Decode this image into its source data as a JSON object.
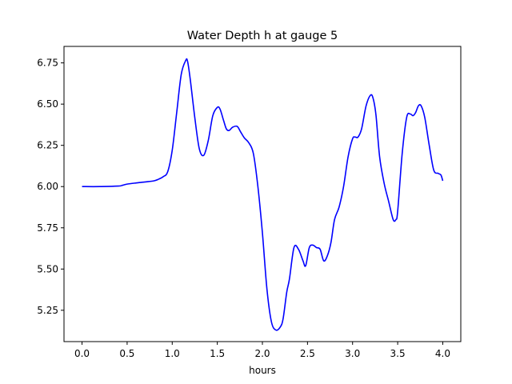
{
  "chart_data": {
    "type": "line",
    "title": "Water Depth h at gauge 5",
    "xlabel": "hours",
    "ylabel": "",
    "xlim": [
      -0.2,
      4.2
    ],
    "ylim": [
      5.06,
      6.85
    ],
    "xticks": [
      0.0,
      0.5,
      1.0,
      1.5,
      2.0,
      2.5,
      3.0,
      3.5,
      4.0
    ],
    "xtick_labels": [
      "0.0",
      "0.5",
      "1.0",
      "1.5",
      "2.0",
      "2.5",
      "3.0",
      "3.5",
      "4.0"
    ],
    "yticks": [
      5.25,
      5.5,
      5.75,
      6.0,
      6.25,
      6.5,
      6.75
    ],
    "ytick_labels": [
      "5.25",
      "5.50",
      "5.75",
      "6.00",
      "6.25",
      "6.50",
      "6.75"
    ],
    "grid": false,
    "series": [
      {
        "color": "#0000ff",
        "x": [
          0.0,
          0.2,
          0.4,
          0.45,
          0.5,
          0.6,
          0.7,
          0.8,
          0.85,
          0.9,
          0.95,
          1.0,
          1.05,
          1.1,
          1.15,
          1.17,
          1.2,
          1.25,
          1.3,
          1.35,
          1.4,
          1.45,
          1.5,
          1.53,
          1.57,
          1.6,
          1.63,
          1.67,
          1.72,
          1.76,
          1.8,
          1.85,
          1.9,
          1.95,
          2.0,
          2.05,
          2.1,
          2.15,
          2.2,
          2.23,
          2.27,
          2.3,
          2.35,
          2.4,
          2.45,
          2.48,
          2.52,
          2.56,
          2.6,
          2.64,
          2.68,
          2.72,
          2.76,
          2.8,
          2.85,
          2.9,
          2.95,
          3.0,
          3.03,
          3.06,
          3.1,
          3.15,
          3.2,
          3.23,
          3.26,
          3.3,
          3.35,
          3.4,
          3.45,
          3.48,
          3.5,
          3.55,
          3.6,
          3.64,
          3.67,
          3.7,
          3.73,
          3.76,
          3.8,
          3.85,
          3.9,
          3.95,
          3.98,
          4.0
        ],
        "y": [
          6.0,
          6.0,
          6.003,
          6.008,
          6.015,
          6.022,
          6.028,
          6.035,
          6.045,
          6.06,
          6.09,
          6.22,
          6.45,
          6.68,
          6.765,
          6.76,
          6.65,
          6.42,
          6.23,
          6.19,
          6.28,
          6.43,
          6.48,
          6.47,
          6.4,
          6.35,
          6.34,
          6.36,
          6.365,
          6.33,
          6.295,
          6.265,
          6.2,
          6.0,
          5.72,
          5.38,
          5.18,
          5.13,
          5.15,
          5.2,
          5.36,
          5.44,
          5.63,
          5.62,
          5.55,
          5.52,
          5.63,
          5.645,
          5.63,
          5.62,
          5.55,
          5.58,
          5.66,
          5.8,
          5.875,
          6.0,
          6.18,
          6.29,
          6.3,
          6.3,
          6.35,
          6.49,
          6.555,
          6.53,
          6.43,
          6.18,
          6.02,
          5.91,
          5.8,
          5.8,
          5.85,
          6.2,
          6.42,
          6.44,
          6.43,
          6.45,
          6.49,
          6.49,
          6.42,
          6.25,
          6.1,
          6.08,
          6.07,
          6.035
        ]
      }
    ]
  }
}
